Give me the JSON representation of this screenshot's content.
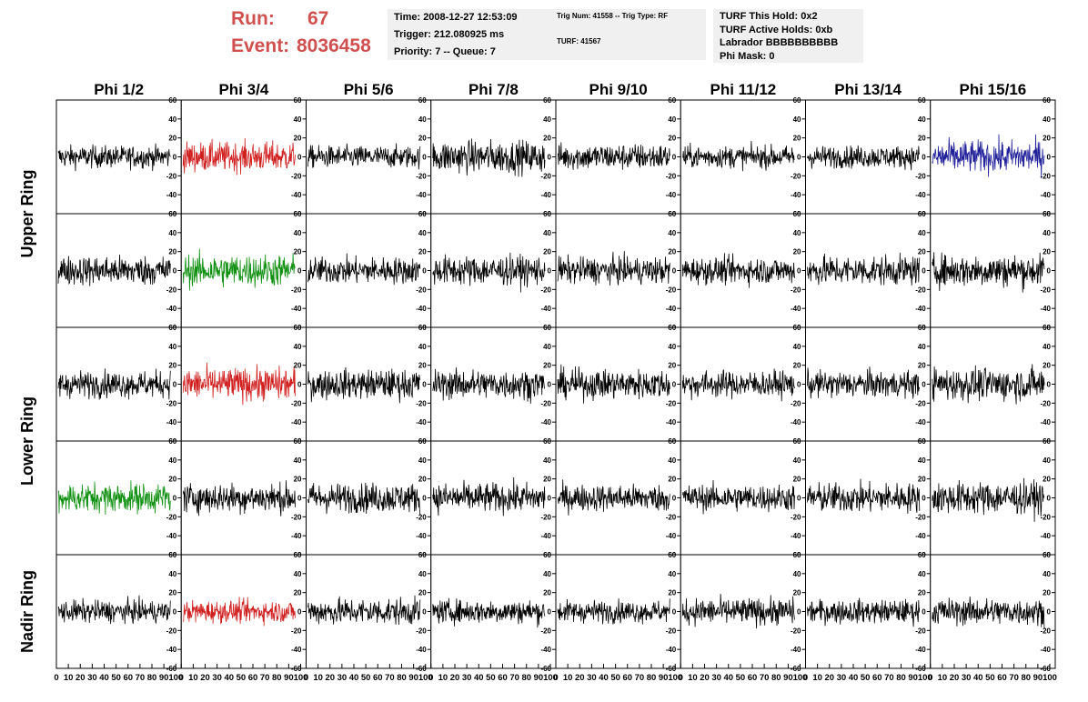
{
  "header": {
    "run_label": "Run:",
    "run_value": "67",
    "event_label": "Event:",
    "event_value": "8036458",
    "info_box_1": [
      "Time: 2008-12-27 12:53:09",
      "Trigger: 212.080925 ms",
      "Priority: 7 -- Queue: 7"
    ],
    "info_box_2_line1": "Trig Num: 41558 -- Trig Type: RF",
    "info_box_2_line2": "TURF: 41567",
    "info_box_3": [
      "TURF This Hold: 0x2",
      "TURF Active Holds: 0xb",
      "Labrador BBBBBBBBBB",
      "Phi Mask: 0"
    ],
    "colors": {
      "run_text": "#d05050",
      "box_bg": "#f0f0f0"
    }
  },
  "chart_data": {
    "type": "line",
    "title": "",
    "column_labels": [
      "Phi 1/2",
      "Phi 3/4",
      "Phi 5/6",
      "Phi 7/8",
      "Phi 9/10",
      "Phi 11/12",
      "Phi 13/14",
      "Phi 15/16"
    ],
    "row_labels": [
      "Upper Ring",
      "Lower Ring",
      "Nadir Ring"
    ],
    "panel_rows": 5,
    "ylim": [
      -60,
      60
    ],
    "xlim": [
      0,
      100
    ],
    "y_ticks": [
      "-60",
      "-40",
      "-20",
      "0",
      "20",
      "40",
      "60"
    ],
    "x_ticks": [
      "0",
      "10",
      "20",
      "30",
      "40",
      "50",
      "60",
      "70",
      "80",
      "90",
      "100"
    ],
    "series_colors": {
      "default": "#000000",
      "red": "#d02020",
      "green": "#109010",
      "blue": "#20209a"
    },
    "highlighted_panels": [
      {
        "row": 0,
        "col": 1,
        "color": "red"
      },
      {
        "row": 0,
        "col": 7,
        "color": "blue"
      },
      {
        "row": 1,
        "col": 1,
        "color": "green"
      },
      {
        "row": 2,
        "col": 1,
        "color": "red"
      },
      {
        "row": 3,
        "col": 0,
        "color": "green"
      },
      {
        "row": 4,
        "col": 1,
        "color": "red"
      }
    ],
    "waveform_amplitude": [
      [
        15,
        20,
        15,
        22,
        18,
        15,
        15,
        22
      ],
      [
        20,
        22,
        18,
        20,
        18,
        18,
        20,
        22
      ],
      [
        18,
        22,
        20,
        20,
        20,
        18,
        18,
        22
      ],
      [
        20,
        20,
        20,
        20,
        18,
        18,
        20,
        22
      ],
      [
        15,
        15,
        18,
        16,
        15,
        18,
        16,
        18
      ]
    ],
    "samples_per_trace": 260
  }
}
